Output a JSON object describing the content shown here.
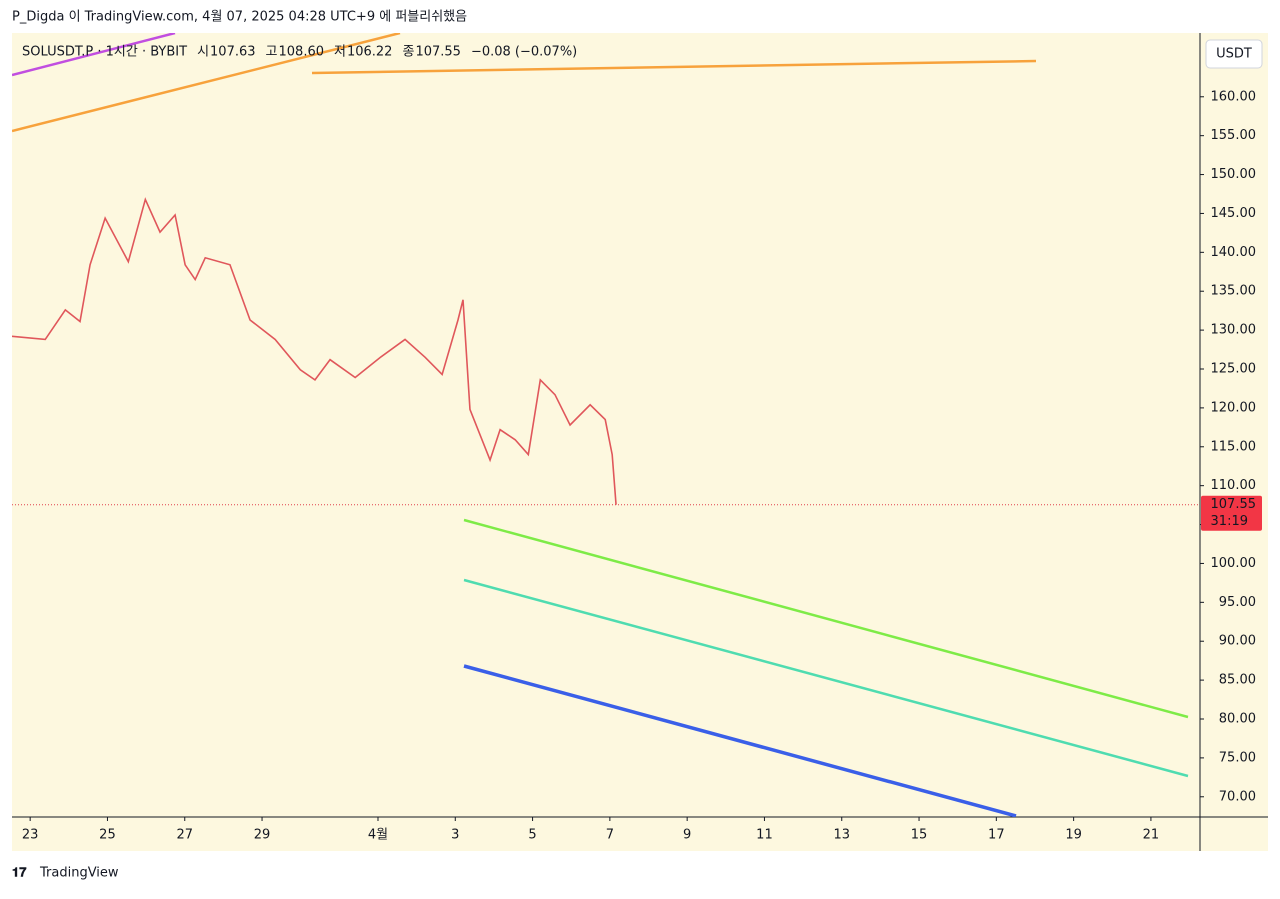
{
  "header": {
    "publish_line": "P_Digda 이 TradingView.com, 4월 07, 2025 04:28 UTC+9 에 퍼블리쉬했음",
    "symbol": "SOLUSDT.P · 1시간 · BYBIT",
    "ohlc": [
      [
        "시",
        "107.63"
      ],
      [
        "고",
        "108.60"
      ],
      [
        "저",
        "106.22"
      ],
      [
        "종",
        "107.55"
      ]
    ],
    "change": "−0.08 (−0.07%)",
    "currency": "USDT",
    "brand": "TradingView"
  },
  "chart_data": {
    "type": "line",
    "color": "#e0575b",
    "x": [
      -0.47,
      0.39,
      0.91,
      1.29,
      1.55,
      1.94,
      2.54,
      2.98,
      3.36,
      3.75,
      4.01,
      4.27,
      4.53,
      5.17,
      5.69,
      6.34,
      6.99,
      7.37,
      7.76,
      8.41,
      9.06,
      9.7,
      10.22,
      10.66,
      11.07,
      11.2,
      11.38,
      11.9,
      12.16,
      12.55,
      12.89,
      13.2,
      13.58,
      13.97,
      14.49,
      14.88,
      15.06,
      15.16
    ],
    "values": [
      129.2,
      128.8,
      132.6,
      131.1,
      138.4,
      144.4,
      138.8,
      146.8,
      142.6,
      144.8,
      138.4,
      136.5,
      139.3,
      138.4,
      131.3,
      128.8,
      124.9,
      123.6,
      126.2,
      123.9,
      126.5,
      128.8,
      126.5,
      124.3,
      131.3,
      133.9,
      119.8,
      113.3,
      117.2,
      115.9,
      114.0,
      123.6,
      121.7,
      117.8,
      120.4,
      118.5,
      114.0,
      107.55
    ],
    "xlim": [
      -0.47,
      30.27
    ],
    "ylim": [
      67.4,
      168.2
    ],
    "xticks": [
      {
        "value": 0,
        "label": "23"
      },
      {
        "value": 2,
        "label": "25"
      },
      {
        "value": 4,
        "label": "27"
      },
      {
        "value": 6,
        "label": "29"
      },
      {
        "value": 9,
        "label": "4월"
      },
      {
        "value": 11,
        "label": "3"
      },
      {
        "value": 13,
        "label": "5"
      },
      {
        "value": 15,
        "label": "7"
      },
      {
        "value": 17,
        "label": "9"
      },
      {
        "value": 19,
        "label": "11"
      },
      {
        "value": 21,
        "label": "13"
      },
      {
        "value": 23,
        "label": "15"
      },
      {
        "value": 25,
        "label": "17"
      },
      {
        "value": 27,
        "label": "19"
      },
      {
        "value": 29,
        "label": "21"
      }
    ],
    "yticks": [
      {
        "value": 70,
        "label": "70.00"
      },
      {
        "value": 75,
        "label": "75.00"
      },
      {
        "value": 80,
        "label": "80.00"
      },
      {
        "value": 85,
        "label": "85.00"
      },
      {
        "value": 90,
        "label": "90.00"
      },
      {
        "value": 95,
        "label": "95.00"
      },
      {
        "value": 100,
        "label": "100.00"
      },
      {
        "value": 105,
        "label": "105.00"
      },
      {
        "value": 110,
        "label": "110.00"
      },
      {
        "value": 115,
        "label": "115.00"
      },
      {
        "value": 120,
        "label": "120.00"
      },
      {
        "value": 125,
        "label": "125.00"
      },
      {
        "value": 130,
        "label": "130.00"
      },
      {
        "value": 135,
        "label": "135.00"
      },
      {
        "value": 140,
        "label": "140.00"
      },
      {
        "value": 145,
        "label": "145.00"
      },
      {
        "value": 150,
        "label": "150.00"
      },
      {
        "value": 155,
        "label": "155.00"
      },
      {
        "value": 160,
        "label": "160.00"
      }
    ],
    "last_price": {
      "value": 107.55,
      "countdown": "31:19"
    }
  }
}
